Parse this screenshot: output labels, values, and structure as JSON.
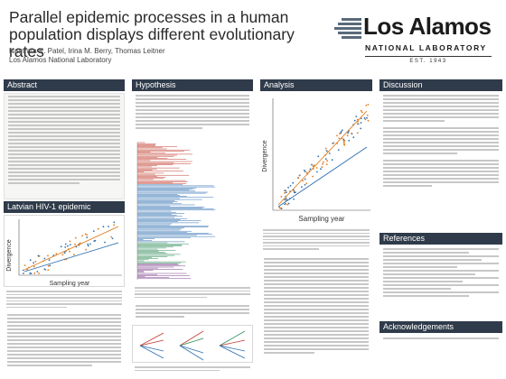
{
  "header": {
    "title": "Parallel epidemic processes in a human population displays different evolutionary rates",
    "authors": "Namrata K. Patel, Irina M. Berry, Thomas Leitner",
    "affiliation": "Los Alamos National Laboratory"
  },
  "logo": {
    "name": "Los Alamos",
    "subtitle": "NATIONAL LABORATORY",
    "est": "EST. 1943"
  },
  "sections": {
    "abstract": "Abstract",
    "latvian": "Latvian HIV-1 epidemic",
    "hypothesis": "Hypothesis",
    "analysis": "Analysis",
    "discussion": "Discussion",
    "references": "References",
    "acknowledgements": "Acknowledgements"
  },
  "figures": {
    "left_plot": {
      "ylabel": "Divergence",
      "xlabel": "Sampling year"
    },
    "right_plot": {
      "ylabel": "Divergence",
      "xlabel": "Sampling year"
    }
  },
  "colors": {
    "header_bg": "#2f3b4a",
    "tree_red": "#c0392b",
    "tree_green": "#2e8b57",
    "tree_blue": "#2f6fb0",
    "orange": "#e07b1c"
  }
}
